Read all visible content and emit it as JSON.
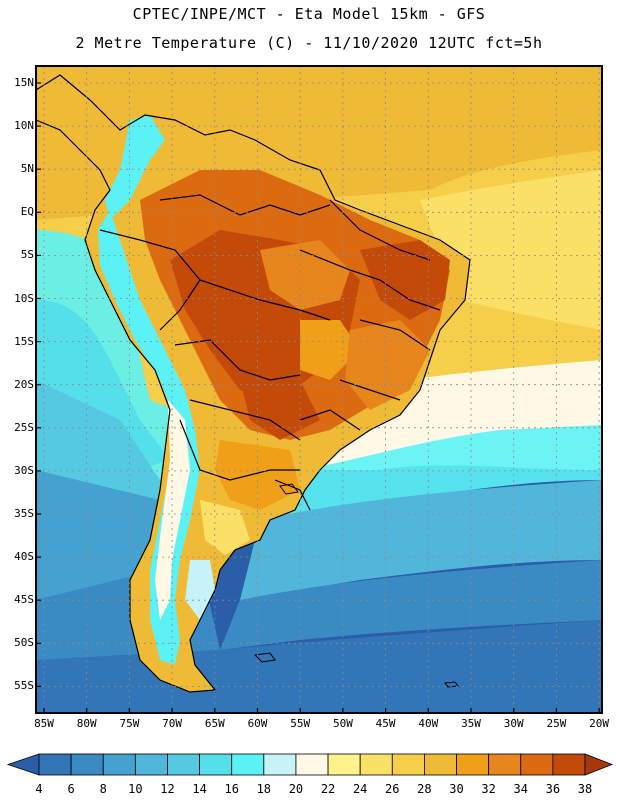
{
  "title": {
    "line1": "CPTEC/INPE/MCT -  Eta Model 15km - GFS",
    "line2": "2 Metre Temperature (C) - 11/10/2020 12UTC fct=5h"
  },
  "latitude_labels": [
    "15N",
    "10N",
    "5N",
    "EQ",
    "5S",
    "10S",
    "15S",
    "20S",
    "25S",
    "30S",
    "35S",
    "40S",
    "45S",
    "50S",
    "55S"
  ],
  "longitude_labels": [
    "85W",
    "80W",
    "75W",
    "70W",
    "65W",
    "60W",
    "55W",
    "50W",
    "45W",
    "40W",
    "35W",
    "30W",
    "25W",
    "20W"
  ],
  "legend": {
    "values": [
      "4",
      "6",
      "8",
      "10",
      "12",
      "14",
      "16",
      "18",
      "20",
      "22",
      "24",
      "26",
      "28",
      "30",
      "32",
      "34",
      "36",
      "38"
    ],
    "colors": [
      "#2a5ea8",
      "#3276b8",
      "#3a8ac4",
      "#45a1cf",
      "#52b6da",
      "#55c9e2",
      "#54dfea",
      "#5cf2f5",
      "#c6f3f8",
      "#fff8e4",
      "#fef28c",
      "#fbe068",
      "#f6cf4a",
      "#efba36",
      "#f0a018",
      "#e8861e",
      "#dc6a10",
      "#c44a0a",
      "#a8380c"
    ]
  }
}
